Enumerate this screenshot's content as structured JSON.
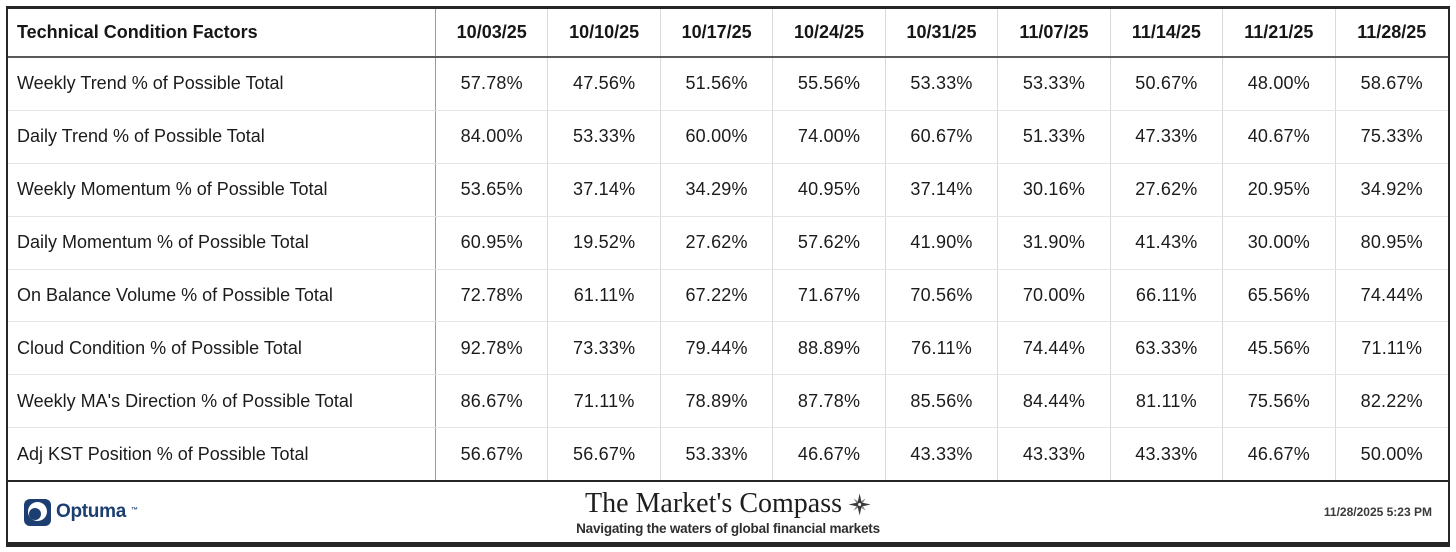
{
  "table": {
    "header": {
      "label": "Technical Condition Factors",
      "dates": [
        "10/03/25",
        "10/10/25",
        "10/17/25",
        "10/24/25",
        "10/31/25",
        "11/07/25",
        "11/14/25",
        "11/21/25",
        "11/28/25"
      ]
    },
    "rows": [
      {
        "label": "Weekly Trend % of Possible Total",
        "values": [
          "57.78%",
          "47.56%",
          "51.56%",
          "55.56%",
          "53.33%",
          "53.33%",
          "50.67%",
          "48.00%",
          "58.67%"
        ]
      },
      {
        "label": "Daily Trend % of Possible Total",
        "values": [
          "84.00%",
          "53.33%",
          "60.00%",
          "74.00%",
          "60.67%",
          "51.33%",
          "47.33%",
          "40.67%",
          "75.33%"
        ]
      },
      {
        "label": "Weekly Momentum % of Possible Total",
        "values": [
          "53.65%",
          "37.14%",
          "34.29%",
          "40.95%",
          "37.14%",
          "30.16%",
          "27.62%",
          "20.95%",
          "34.92%"
        ]
      },
      {
        "label": "Daily Momentum % of Possible Total",
        "values": [
          "60.95%",
          "19.52%",
          "27.62%",
          "57.62%",
          "41.90%",
          "31.90%",
          "41.43%",
          "30.00%",
          "80.95%"
        ]
      },
      {
        "label": "On Balance Volume % of Possible Total",
        "values": [
          "72.78%",
          "61.11%",
          "67.22%",
          "71.67%",
          "70.56%",
          "70.00%",
          "66.11%",
          "65.56%",
          "74.44%"
        ]
      },
      {
        "label": "Cloud Condition % of Possible Total",
        "values": [
          "92.78%",
          "73.33%",
          "79.44%",
          "88.89%",
          "76.11%",
          "74.44%",
          "63.33%",
          "45.56%",
          "71.11%"
        ]
      },
      {
        "label": "Weekly MA's Direction % of Possible Total",
        "values": [
          "86.67%",
          "71.11%",
          "78.89%",
          "87.78%",
          "85.56%",
          "84.44%",
          "81.11%",
          "75.56%",
          "82.22%"
        ]
      },
      {
        "label": "Adj KST Position % of Possible Total",
        "values": [
          "56.67%",
          "56.67%",
          "53.33%",
          "46.67%",
          "43.33%",
          "43.33%",
          "43.33%",
          "46.67%",
          "50.00%"
        ]
      }
    ]
  },
  "footer": {
    "logo_text": "Optuma",
    "logo_mark": "™",
    "brand_title": "The Market's Compass",
    "brand_tagline": "Navigating the waters of global financial markets",
    "timestamp": "11/28/2025 5:23 PM"
  },
  "colors": {
    "logo_navy": "#1c3e70",
    "text": "#1b1b1b",
    "header_rule": "#5a5a5a",
    "grid_light": "#dadada",
    "frame_border": "#262626"
  },
  "chart_data": {
    "type": "table",
    "title": "Technical Condition Factors",
    "categories": [
      "10/03/25",
      "10/10/25",
      "10/17/25",
      "10/24/25",
      "10/31/25",
      "11/07/25",
      "11/14/25",
      "11/21/25",
      "11/28/25"
    ],
    "unit": "%",
    "series": [
      {
        "name": "Weekly Trend % of Possible Total",
        "values": [
          57.78,
          47.56,
          51.56,
          55.56,
          53.33,
          53.33,
          50.67,
          48.0,
          58.67
        ]
      },
      {
        "name": "Daily Trend % of Possible Total",
        "values": [
          84.0,
          53.33,
          60.0,
          74.0,
          60.67,
          51.33,
          47.33,
          40.67,
          75.33
        ]
      },
      {
        "name": "Weekly Momentum % of Possible Total",
        "values": [
          53.65,
          37.14,
          34.29,
          40.95,
          37.14,
          30.16,
          27.62,
          20.95,
          34.92
        ]
      },
      {
        "name": "Daily Momentum % of Possible Total",
        "values": [
          60.95,
          19.52,
          27.62,
          57.62,
          41.9,
          31.9,
          41.43,
          30.0,
          80.95
        ]
      },
      {
        "name": "On Balance Volume % of Possible Total",
        "values": [
          72.78,
          61.11,
          67.22,
          71.67,
          70.56,
          70.0,
          66.11,
          65.56,
          74.44
        ]
      },
      {
        "name": "Cloud Condition % of Possible Total",
        "values": [
          92.78,
          73.33,
          79.44,
          88.89,
          76.11,
          74.44,
          63.33,
          45.56,
          71.11
        ]
      },
      {
        "name": "Weekly MA's Direction % of Possible Total",
        "values": [
          86.67,
          71.11,
          78.89,
          87.78,
          85.56,
          84.44,
          81.11,
          75.56,
          82.22
        ]
      },
      {
        "name": "Adj KST Position % of Possible Total",
        "values": [
          56.67,
          56.67,
          53.33,
          46.67,
          43.33,
          43.33,
          43.33,
          46.67,
          50.0
        ]
      }
    ]
  }
}
